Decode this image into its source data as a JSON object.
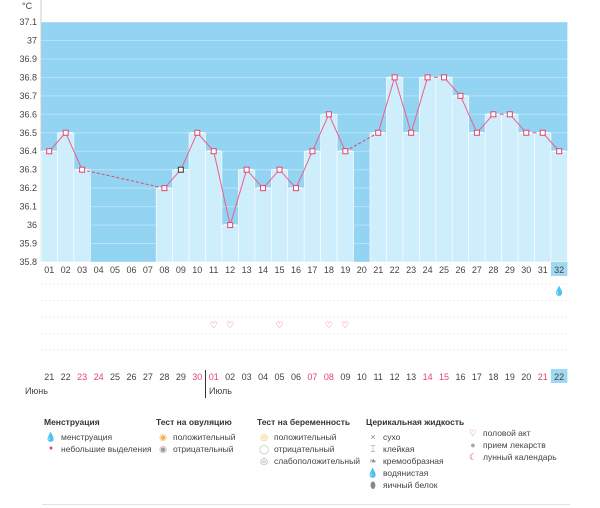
{
  "chart_data": {
    "type": "line",
    "unit": "°C",
    "ylim": [
      35.8,
      37.1
    ],
    "yticks": [
      "35.8",
      "35.9",
      "36",
      "36.1",
      "36.2",
      "36.3",
      "36.4",
      "36.5",
      "36.6",
      "36.7",
      "36.8",
      "36.9",
      "37",
      "37.1"
    ],
    "days": [
      "01",
      "02",
      "03",
      "04",
      "05",
      "06",
      "07",
      "08",
      "09",
      "10",
      "11",
      "12",
      "13",
      "14",
      "15",
      "16",
      "17",
      "18",
      "19",
      "20",
      "21",
      "22",
      "23",
      "24",
      "25",
      "26",
      "27",
      "28",
      "29",
      "30",
      "31",
      "32"
    ],
    "temps": [
      36.4,
      36.5,
      36.3,
      null,
      null,
      null,
      null,
      36.2,
      36.3,
      36.5,
      36.4,
      36.0,
      36.3,
      36.2,
      36.3,
      36.2,
      36.4,
      36.6,
      36.4,
      null,
      36.5,
      36.8,
      36.5,
      36.8,
      36.8,
      36.7,
      36.5,
      36.6,
      36.6,
      36.5,
      36.5,
      36.4
    ],
    "dates": [
      "21",
      "22",
      "23",
      "24",
      "25",
      "26",
      "27",
      "28",
      "29",
      "30",
      "01",
      "02",
      "03",
      "04",
      "05",
      "06",
      "07",
      "08",
      "09",
      "10",
      "11",
      "12",
      "13",
      "14",
      "15",
      "16",
      "17",
      "18",
      "19",
      "20",
      "21",
      "22"
    ],
    "weekend_dates": [
      2,
      3,
      9,
      10,
      16,
      17,
      23,
      24,
      30
    ],
    "months": [
      "Июнь",
      "Июль"
    ],
    "intercourse_days": [
      10,
      11,
      14,
      17,
      18
    ],
    "today_index": 31,
    "colors": {
      "fill_high": "#92d4f2",
      "fill_low": "#cfeefb",
      "line": "#ec5f8c",
      "dashed": "#e0456f",
      "marker": "#e0456f",
      "weekend": "#e0456f",
      "today": "#9fd8f1"
    }
  },
  "legend": {
    "menstruation": {
      "title": "Менструация",
      "items": [
        "менструация",
        "небольшие выделения"
      ]
    },
    "ovulation": {
      "title": "Тест на овуляцию",
      "items": [
        "положительный",
        "отрицательный"
      ]
    },
    "pregnancy": {
      "title": "Тест на беременность",
      "items": [
        "положительный",
        "отрицательный",
        "слабоположительный"
      ]
    },
    "cervical": {
      "title": "Церикальная жидкость",
      "items": [
        "сухо",
        "клейкая",
        "кремообразная",
        "водянистая",
        "яичный белок"
      ]
    },
    "other": {
      "items": [
        "половой акт",
        "прием лекарств",
        "лунный календарь"
      ]
    }
  }
}
